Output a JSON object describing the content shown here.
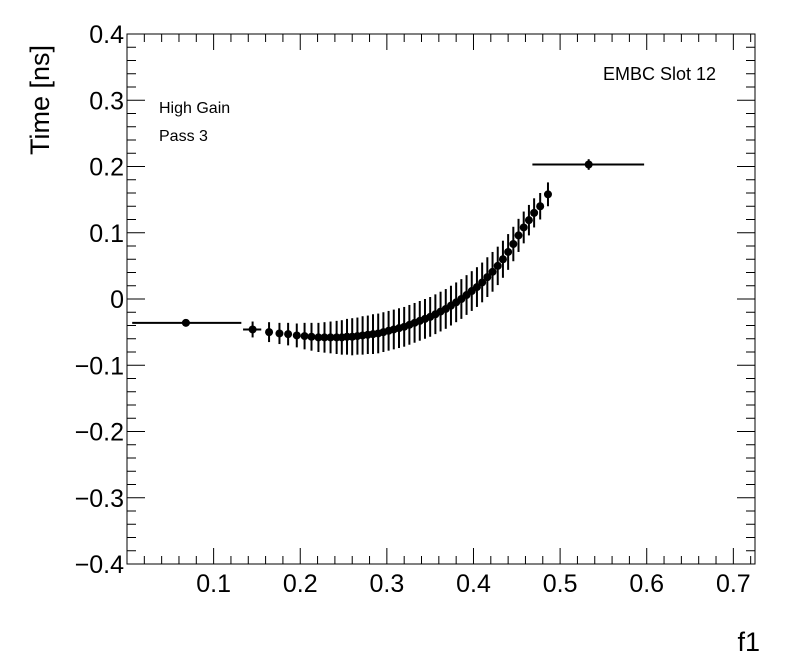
{
  "chart_data": {
    "type": "scatter",
    "title": "",
    "xlabel": "f1",
    "ylabel": "Time [ns]",
    "xlim": [
      0.0,
      0.725
    ],
    "ylim": [
      -0.4,
      0.4
    ],
    "x_ticks": [
      0.1,
      0.2,
      0.3,
      0.4,
      0.5,
      0.6,
      0.7
    ],
    "x_tick_labels": [
      "0.1",
      "0.2",
      "0.3",
      "0.4",
      "0.5",
      "0.6",
      "0.7"
    ],
    "y_ticks": [
      -0.4,
      -0.3,
      -0.2,
      -0.1,
      0.0,
      0.1,
      0.2,
      0.3,
      0.4
    ],
    "y_tick_labels": [
      "−0.4",
      "−0.3",
      "−0.2",
      "−0.1",
      "0",
      "0.1",
      "0.2",
      "0.3",
      "0.4"
    ],
    "annotations": {
      "top_right": "EMBC Slot 12",
      "line1": "High Gain",
      "line2": "Pass 3"
    },
    "grid": false,
    "series": [
      {
        "name": "Pass 3",
        "points": [
          {
            "x": 0.068,
            "y": -0.036,
            "xerr_lo": 0.062,
            "xerr_hi": 0.064,
            "yerr": 0.004
          },
          {
            "x": 0.145,
            "y": -0.046,
            "xerr_lo": 0.011,
            "xerr_hi": 0.01,
            "yerr": 0.012
          },
          {
            "x": 0.164,
            "y": -0.05,
            "xerr_lo": 0.004,
            "xerr_hi": 0.004,
            "yerr": 0.015
          },
          {
            "x": 0.176,
            "y": -0.052,
            "xerr_lo": 0.003,
            "xerr_hi": 0.003,
            "yerr": 0.016
          },
          {
            "x": 0.186,
            "y": -0.053,
            "xerr_lo": 0.003,
            "xerr_hi": 0.003,
            "yerr": 0.017
          },
          {
            "x": 0.196,
            "y": -0.055,
            "xerr_lo": 0.003,
            "xerr_hi": 0.003,
            "yerr": 0.018
          },
          {
            "x": 0.205,
            "y": -0.056,
            "xerr_lo": 0.002,
            "xerr_hi": 0.002,
            "yerr": 0.02
          },
          {
            "x": 0.213,
            "y": -0.057,
            "xerr_lo": 0.002,
            "xerr_hi": 0.002,
            "yerr": 0.021
          },
          {
            "x": 0.221,
            "y": -0.058,
            "xerr_lo": 0.002,
            "xerr_hi": 0.002,
            "yerr": 0.022
          },
          {
            "x": 0.228,
            "y": -0.058,
            "xerr_lo": 0.002,
            "xerr_hi": 0.002,
            "yerr": 0.023
          },
          {
            "x": 0.235,
            "y": -0.058,
            "xerr_lo": 0.002,
            "xerr_hi": 0.002,
            "yerr": 0.024
          },
          {
            "x": 0.242,
            "y": -0.058,
            "xerr_lo": 0.002,
            "xerr_hi": 0.002,
            "yerr": 0.025
          },
          {
            "x": 0.248,
            "y": -0.058,
            "xerr_lo": 0.002,
            "xerr_hi": 0.002,
            "yerr": 0.026
          },
          {
            "x": 0.254,
            "y": -0.057,
            "xerr_lo": 0.002,
            "xerr_hi": 0.002,
            "yerr": 0.027
          },
          {
            "x": 0.26,
            "y": -0.057,
            "xerr_lo": 0.002,
            "xerr_hi": 0.002,
            "yerr": 0.028
          },
          {
            "x": 0.266,
            "y": -0.056,
            "xerr_lo": 0.002,
            "xerr_hi": 0.002,
            "yerr": 0.028
          },
          {
            "x": 0.272,
            "y": -0.055,
            "xerr_lo": 0.002,
            "xerr_hi": 0.002,
            "yerr": 0.029
          },
          {
            "x": 0.278,
            "y": -0.054,
            "xerr_lo": 0.002,
            "xerr_hi": 0.002,
            "yerr": 0.029
          },
          {
            "x": 0.284,
            "y": -0.053,
            "xerr_lo": 0.002,
            "xerr_hi": 0.002,
            "yerr": 0.03
          },
          {
            "x": 0.29,
            "y": -0.052,
            "xerr_lo": 0.002,
            "xerr_hi": 0.002,
            "yerr": 0.03
          },
          {
            "x": 0.296,
            "y": -0.05,
            "xerr_lo": 0.002,
            "xerr_hi": 0.002,
            "yerr": 0.03
          },
          {
            "x": 0.302,
            "y": -0.048,
            "xerr_lo": 0.002,
            "xerr_hi": 0.002,
            "yerr": 0.03
          },
          {
            "x": 0.308,
            "y": -0.046,
            "xerr_lo": 0.002,
            "xerr_hi": 0.002,
            "yerr": 0.03
          },
          {
            "x": 0.314,
            "y": -0.044,
            "xerr_lo": 0.002,
            "xerr_hi": 0.002,
            "yerr": 0.03
          },
          {
            "x": 0.32,
            "y": -0.042,
            "xerr_lo": 0.002,
            "xerr_hi": 0.002,
            "yerr": 0.03
          },
          {
            "x": 0.326,
            "y": -0.039,
            "xerr_lo": 0.002,
            "xerr_hi": 0.002,
            "yerr": 0.03
          },
          {
            "x": 0.332,
            "y": -0.036,
            "xerr_lo": 0.002,
            "xerr_hi": 0.002,
            "yerr": 0.03
          },
          {
            "x": 0.338,
            "y": -0.033,
            "xerr_lo": 0.002,
            "xerr_hi": 0.002,
            "yerr": 0.03
          },
          {
            "x": 0.344,
            "y": -0.03,
            "xerr_lo": 0.002,
            "xerr_hi": 0.002,
            "yerr": 0.03
          },
          {
            "x": 0.35,
            "y": -0.027,
            "xerr_lo": 0.002,
            "xerr_hi": 0.002,
            "yerr": 0.03
          },
          {
            "x": 0.356,
            "y": -0.023,
            "xerr_lo": 0.002,
            "xerr_hi": 0.002,
            "yerr": 0.03
          },
          {
            "x": 0.362,
            "y": -0.019,
            "xerr_lo": 0.002,
            "xerr_hi": 0.002,
            "yerr": 0.03
          },
          {
            "x": 0.368,
            "y": -0.015,
            "xerr_lo": 0.002,
            "xerr_hi": 0.002,
            "yerr": 0.03
          },
          {
            "x": 0.374,
            "y": -0.01,
            "xerr_lo": 0.002,
            "xerr_hi": 0.002,
            "yerr": 0.03
          },
          {
            "x": 0.38,
            "y": -0.005,
            "xerr_lo": 0.002,
            "xerr_hi": 0.002,
            "yerr": 0.03
          },
          {
            "x": 0.386,
            "y": 0.0,
            "xerr_lo": 0.002,
            "xerr_hi": 0.002,
            "yerr": 0.03
          },
          {
            "x": 0.392,
            "y": 0.006,
            "xerr_lo": 0.002,
            "xerr_hi": 0.002,
            "yerr": 0.03
          },
          {
            "x": 0.398,
            "y": 0.012,
            "xerr_lo": 0.002,
            "xerr_hi": 0.002,
            "yerr": 0.03
          },
          {
            "x": 0.404,
            "y": 0.018,
            "xerr_lo": 0.002,
            "xerr_hi": 0.002,
            "yerr": 0.03
          },
          {
            "x": 0.41,
            "y": 0.025,
            "xerr_lo": 0.002,
            "xerr_hi": 0.002,
            "yerr": 0.03
          },
          {
            "x": 0.416,
            "y": 0.033,
            "xerr_lo": 0.002,
            "xerr_hi": 0.002,
            "yerr": 0.03
          },
          {
            "x": 0.422,
            "y": 0.041,
            "xerr_lo": 0.002,
            "xerr_hi": 0.002,
            "yerr": 0.03
          },
          {
            "x": 0.428,
            "y": 0.05,
            "xerr_lo": 0.002,
            "xerr_hi": 0.002,
            "yerr": 0.029
          },
          {
            "x": 0.434,
            "y": 0.06,
            "xerr_lo": 0.002,
            "xerr_hi": 0.002,
            "yerr": 0.028
          },
          {
            "x": 0.44,
            "y": 0.071,
            "xerr_lo": 0.002,
            "xerr_hi": 0.002,
            "yerr": 0.027
          },
          {
            "x": 0.446,
            "y": 0.083,
            "xerr_lo": 0.002,
            "xerr_hi": 0.002,
            "yerr": 0.026
          },
          {
            "x": 0.452,
            "y": 0.096,
            "xerr_lo": 0.002,
            "xerr_hi": 0.002,
            "yerr": 0.025
          },
          {
            "x": 0.458,
            "y": 0.108,
            "xerr_lo": 0.002,
            "xerr_hi": 0.002,
            "yerr": 0.024
          },
          {
            "x": 0.464,
            "y": 0.119,
            "xerr_lo": 0.002,
            "xerr_hi": 0.002,
            "yerr": 0.023
          },
          {
            "x": 0.47,
            "y": 0.13,
            "xerr_lo": 0.002,
            "xerr_hi": 0.002,
            "yerr": 0.022
          },
          {
            "x": 0.477,
            "y": 0.14,
            "xerr_lo": 0.003,
            "xerr_hi": 0.003,
            "yerr": 0.02
          },
          {
            "x": 0.486,
            "y": 0.158,
            "xerr_lo": 0.004,
            "xerr_hi": 0.004,
            "yerr": 0.018
          },
          {
            "x": 0.533,
            "y": 0.203,
            "xerr_lo": 0.065,
            "xerr_hi": 0.064,
            "yerr": 0.008
          }
        ]
      }
    ]
  }
}
